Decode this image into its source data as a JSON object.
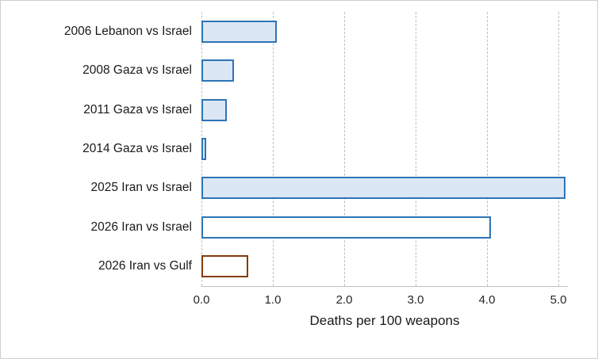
{
  "chart_data": {
    "type": "bar",
    "orientation": "horizontal",
    "title": "",
    "xlabel": "Deaths per 100 weapons",
    "ylabel": "",
    "xlim": [
      0,
      5.1
    ],
    "xticks": [
      0,
      1,
      2,
      3,
      4,
      5
    ],
    "xtick_labels": [
      "0.0",
      "1.0",
      "2.0",
      "3.0",
      "4.0",
      "5.0"
    ],
    "grid": "dashed-vertical",
    "legend": "none",
    "bars": [
      {
        "label": "2006 Lebanon vs Israel",
        "value": 1.05,
        "fill": "#dbe7f4",
        "stroke": "#2e74b5"
      },
      {
        "label": "2008 Gaza vs Israel",
        "value": 0.45,
        "fill": "#dbe7f4",
        "stroke": "#2e74b5"
      },
      {
        "label": "2011 Gaza vs Israel",
        "value": 0.35,
        "fill": "#dbe7f4",
        "stroke": "#2e74b5"
      },
      {
        "label": "2014 Gaza vs Israel",
        "value": 0.07,
        "fill": "#dbe7f4",
        "stroke": "#2e74b5"
      },
      {
        "label": "2025 Iran vs Israel",
        "value": 5.1,
        "fill": "#dbe7f4",
        "stroke": "#2e74b5"
      },
      {
        "label": "2026 Iran vs Israel",
        "value": 4.05,
        "fill": "#ffffff",
        "stroke": "#2e74b5"
      },
      {
        "label": "2026 Iran vs Gulf",
        "value": 0.65,
        "fill": "#ffffff",
        "stroke": "#843c0c"
      }
    ]
  }
}
